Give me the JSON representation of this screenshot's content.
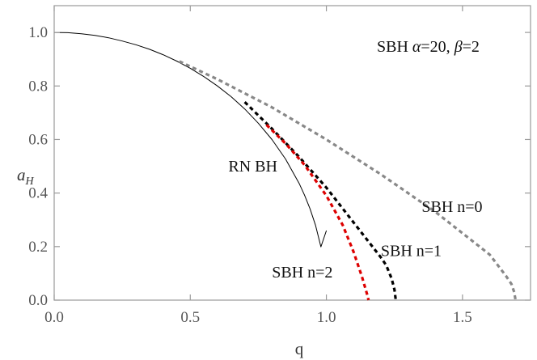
{
  "chart_data": {
    "type": "line",
    "title_parts": {
      "prefix": "SBH ",
      "alpha_symbol": "α",
      "alpha_value": "=20, ",
      "beta_symbol": "β",
      "beta_value": "=2"
    },
    "xlabel": "q",
    "ylabel_main": "a",
    "ylabel_sub": "H",
    "xlim": [
      0,
      1.75
    ],
    "ylim": [
      0,
      1.1
    ],
    "x_ticks": [
      0,
      0.5,
      1,
      1.5
    ],
    "x_tick_labels": [
      "0.0",
      "0.5",
      "1.0",
      "1.5"
    ],
    "y_ticks": [
      0,
      0.2,
      0.4,
      0.6,
      0.8,
      1.0
    ],
    "y_tick_labels": [
      "0.0",
      "0.2",
      "0.4",
      "0.6",
      "0.8",
      "1.0"
    ],
    "grid": false,
    "series": [
      {
        "name": "RN BH",
        "style": "solid",
        "color": "#000000",
        "x": [
          0,
          0.05,
          0.1,
          0.15,
          0.2,
          0.25,
          0.3,
          0.35,
          0.4,
          0.45,
          0.5,
          0.55,
          0.6,
          0.65,
          0.7,
          0.75,
          0.8,
          0.85,
          0.9,
          0.92,
          0.94,
          0.96,
          0.98,
          1.0
        ],
        "y": [
          1.0,
          0.999,
          0.995,
          0.989,
          0.98,
          0.968,
          0.954,
          0.937,
          0.917,
          0.893,
          0.866,
          0.835,
          0.8,
          0.76,
          0.714,
          0.661,
          0.6,
          0.527,
          0.436,
          0.392,
          0.341,
          0.28,
          0.199,
          0.26
        ]
      },
      {
        "name": "SBH n=0",
        "style": "dashed",
        "color": "#888888",
        "x": [
          0.46,
          0.6,
          0.8,
          1.0,
          1.2,
          1.4,
          1.6,
          1.66,
          1.68,
          1.69,
          1.695
        ],
        "y": [
          0.892,
          0.825,
          0.72,
          0.6,
          0.47,
          0.33,
          0.17,
          0.09,
          0.06,
          0.03,
          0.0
        ]
      },
      {
        "name": "SBH n=1",
        "style": "dashed",
        "color": "#000000",
        "x": [
          0.7,
          0.8,
          0.9,
          1.0,
          1.1,
          1.2,
          1.22,
          1.24,
          1.25,
          1.255
        ],
        "y": [
          0.74,
          0.64,
          0.535,
          0.42,
          0.29,
          0.16,
          0.13,
          0.08,
          0.04,
          0.0
        ]
      },
      {
        "name": "SBH n=2",
        "style": "dashed",
        "color": "#dd0000",
        "x": [
          0.78,
          0.85,
          0.92,
          1.0,
          1.06,
          1.1,
          1.13,
          1.15,
          1.155
        ],
        "y": [
          0.655,
          0.585,
          0.505,
          0.39,
          0.28,
          0.18,
          0.09,
          0.02,
          0.0
        ]
      }
    ],
    "annotations": [
      {
        "name": "RN BH",
        "text": "RN BH",
        "x": 0.64,
        "y": 0.48
      },
      {
        "name": "SBH n=0",
        "text": "SBH n=0",
        "x": 1.35,
        "y": 0.33
      },
      {
        "name": "SBH n=1",
        "text": "SBH n=1",
        "x": 1.2,
        "y": 0.165
      },
      {
        "name": "SBH n=2",
        "text": "SBH n=2",
        "x": 0.8,
        "y": 0.085
      }
    ]
  }
}
